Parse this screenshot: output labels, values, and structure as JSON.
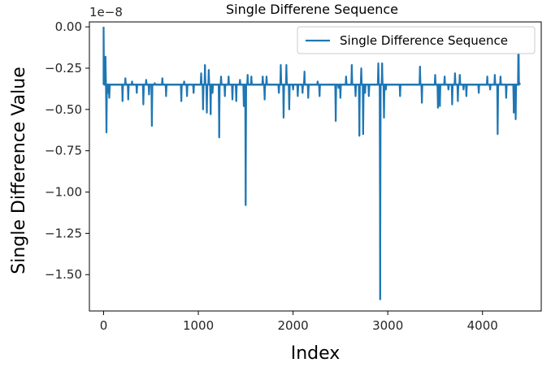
{
  "chart_data": {
    "type": "line",
    "title": "Single Differene Sequence",
    "xlabel": "Index",
    "ylabel": "Single Difference Value",
    "y_offset_label": "1e−8",
    "y_scale_exponent": -8,
    "xlim": [
      -150,
      4620
    ],
    "ylim": [
      -1.72,
      0.03
    ],
    "x_ticks": [
      0,
      1000,
      2000,
      3000,
      4000
    ],
    "x_tick_labels": [
      "0",
      "1000",
      "2000",
      "3000",
      "4000"
    ],
    "y_ticks": [
      0.0,
      -0.25,
      -0.5,
      -0.75,
      -1.0,
      -1.25,
      -1.5
    ],
    "y_tick_labels": [
      "0.00",
      "−0.25",
      "−0.50",
      "−0.75",
      "−1.00",
      "−1.25",
      "−1.50"
    ],
    "grid": false,
    "legend_position": "top-right",
    "series": [
      {
        "name": "Single Difference Sequence",
        "color": "#1f77b4",
        "baseline": -0.35,
        "spikes": [
          [
            0,
            0.0
          ],
          [
            10,
            -0.2
          ],
          [
            20,
            -0.18
          ],
          [
            30,
            -0.64
          ],
          [
            45,
            -0.4
          ],
          [
            60,
            -0.43
          ],
          [
            200,
            -0.45
          ],
          [
            230,
            -0.31
          ],
          [
            260,
            -0.44
          ],
          [
            300,
            -0.33
          ],
          [
            350,
            -0.4
          ],
          [
            420,
            -0.47
          ],
          [
            450,
            -0.32
          ],
          [
            480,
            -0.41
          ],
          [
            510,
            -0.6
          ],
          [
            540,
            -0.34
          ],
          [
            620,
            -0.31
          ],
          [
            660,
            -0.42
          ],
          [
            820,
            -0.45
          ],
          [
            850,
            -0.33
          ],
          [
            880,
            -0.42
          ],
          [
            950,
            -0.4
          ],
          [
            1030,
            -0.28
          ],
          [
            1050,
            -0.5
          ],
          [
            1070,
            -0.23
          ],
          [
            1090,
            -0.52
          ],
          [
            1110,
            -0.26
          ],
          [
            1130,
            -0.53
          ],
          [
            1150,
            -0.4
          ],
          [
            1220,
            -0.67
          ],
          [
            1240,
            -0.3
          ],
          [
            1280,
            -0.42
          ],
          [
            1320,
            -0.3
          ],
          [
            1360,
            -0.44
          ],
          [
            1400,
            -0.45
          ],
          [
            1440,
            -0.32
          ],
          [
            1480,
            -0.48
          ],
          [
            1500,
            -1.08
          ],
          [
            1520,
            -0.29
          ],
          [
            1560,
            -0.3
          ],
          [
            1680,
            -0.3
          ],
          [
            1700,
            -0.44
          ],
          [
            1720,
            -0.3
          ],
          [
            1850,
            -0.4
          ],
          [
            1870,
            -0.23
          ],
          [
            1900,
            -0.55
          ],
          [
            1930,
            -0.23
          ],
          [
            1960,
            -0.5
          ],
          [
            2000,
            -0.38
          ],
          [
            2050,
            -0.42
          ],
          [
            2100,
            -0.4
          ],
          [
            2120,
            -0.27
          ],
          [
            2160,
            -0.43
          ],
          [
            2260,
            -0.33
          ],
          [
            2280,
            -0.42
          ],
          [
            2450,
            -0.57
          ],
          [
            2480,
            -0.37
          ],
          [
            2500,
            -0.43
          ],
          [
            2560,
            -0.3
          ],
          [
            2620,
            -0.23
          ],
          [
            2660,
            -0.42
          ],
          [
            2700,
            -0.66
          ],
          [
            2720,
            -0.25
          ],
          [
            2740,
            -0.65
          ],
          [
            2760,
            -0.4
          ],
          [
            2800,
            -0.42
          ],
          [
            2900,
            -0.22
          ],
          [
            2920,
            -1.65
          ],
          [
            2940,
            -0.22
          ],
          [
            2960,
            -0.55
          ],
          [
            2980,
            -0.38
          ],
          [
            3130,
            -0.42
          ],
          [
            3340,
            -0.24
          ],
          [
            3360,
            -0.46
          ],
          [
            3500,
            -0.29
          ],
          [
            3530,
            -0.49
          ],
          [
            3550,
            -0.48
          ],
          [
            3600,
            -0.3
          ],
          [
            3640,
            -0.38
          ],
          [
            3680,
            -0.47
          ],
          [
            3710,
            -0.28
          ],
          [
            3740,
            -0.45
          ],
          [
            3760,
            -0.29
          ],
          [
            3800,
            -0.38
          ],
          [
            3830,
            -0.42
          ],
          [
            3960,
            -0.4
          ],
          [
            4050,
            -0.3
          ],
          [
            4080,
            -0.38
          ],
          [
            4130,
            -0.29
          ],
          [
            4160,
            -0.65
          ],
          [
            4190,
            -0.3
          ],
          [
            4250,
            -0.43
          ],
          [
            4330,
            -0.52
          ],
          [
            4350,
            -0.56
          ],
          [
            4380,
            -0.01
          ],
          [
            4390,
            -0.34
          ]
        ]
      }
    ]
  }
}
